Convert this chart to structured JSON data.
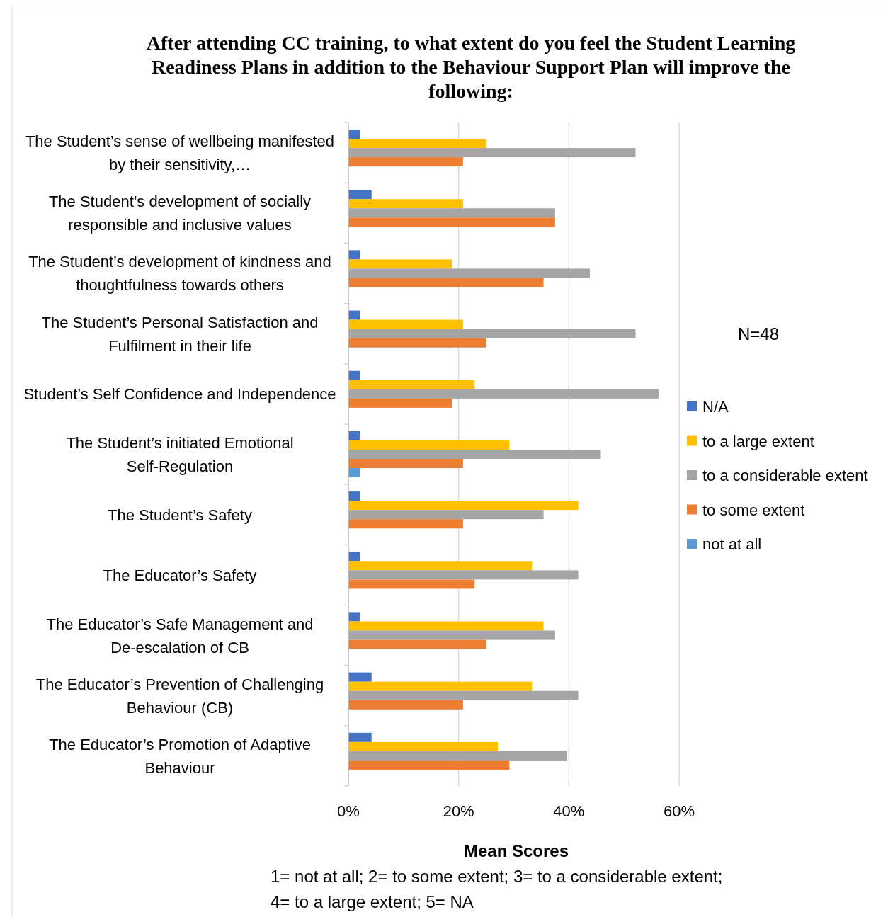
{
  "chart_data": {
    "type": "bar",
    "orientation": "horizontal",
    "title": "After attending CC training, to what extent do you feel the Student Learning Readiness Plans in addition to the Behaviour Support Plan will improve the following:",
    "categories": [
      "The Student’s sense of wellbeing manifested by their sensitivity,…",
      "The Student’s development of socially responsible and inclusive values",
      "The Student’s development of kindness and thoughtfulness towards others",
      "The Student’s Personal Satisfaction and Fulfilment in their life",
      "Student’s Self Confidence and Independence",
      "The Student’s initiated Emotional Self-Regulation",
      "The Student’s Safety",
      "The Educator’s Safety",
      "The Educator’s Safe Management and De-escalation of CB",
      "The Educator’s Prevention of Challenging Behaviour (CB)",
      "The Educator’s Promotion of Adaptive Behaviour"
    ],
    "series": [
      {
        "name": "N/A",
        "color": "#4472c4",
        "values": [
          2.1,
          4.2,
          2.1,
          2.1,
          2.1,
          2.1,
          2.1,
          2.1,
          2.1,
          4.2,
          4.2
        ]
      },
      {
        "name": "to a large extent",
        "color": "#ffc000",
        "values": [
          25.0,
          20.8,
          18.8,
          20.8,
          22.9,
          29.2,
          41.7,
          33.3,
          35.4,
          33.3,
          27.1
        ]
      },
      {
        "name": "to a considerable extent",
        "color": "#a5a5a5",
        "values": [
          52.1,
          37.5,
          43.8,
          52.1,
          56.3,
          45.8,
          35.4,
          41.7,
          37.5,
          41.7,
          39.6
        ]
      },
      {
        "name": "to some extent",
        "color": "#ed7d31",
        "values": [
          20.8,
          37.5,
          35.4,
          25.0,
          18.8,
          20.8,
          20.8,
          22.9,
          25.0,
          20.8,
          29.2
        ]
      },
      {
        "name": "not at all",
        "color": "#5b9bd5",
        "values": [
          null,
          null,
          null,
          null,
          null,
          2.1,
          null,
          null,
          null,
          null,
          null
        ]
      }
    ],
    "xlim": [
      0,
      60
    ],
    "xticks": [
      {
        "value": 0,
        "label": "0%"
      },
      {
        "value": 20,
        "label": "20%"
      },
      {
        "value": 40,
        "label": "40%"
      },
      {
        "value": 60,
        "label": "60%"
      }
    ],
    "xlabel": "Mean Scores",
    "grid": "x",
    "legend": "right",
    "annotations": [
      "N=48",
      "1= not at all; 2= to some extent; 3= to a considerable extent; 4= to a large extent; 5= NA"
    ]
  }
}
